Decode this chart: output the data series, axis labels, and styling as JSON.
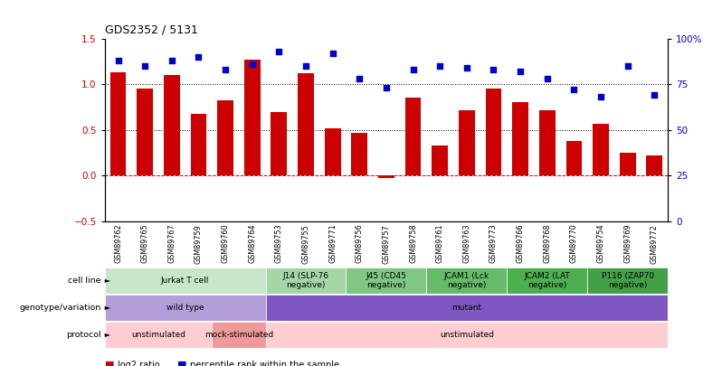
{
  "title": "GDS2352 / 5131",
  "samples": [
    "GSM89762",
    "GSM89765",
    "GSM89767",
    "GSM89759",
    "GSM89760",
    "GSM89764",
    "GSM89753",
    "GSM89755",
    "GSM89771",
    "GSM89756",
    "GSM89757",
    "GSM89758",
    "GSM89761",
    "GSM89763",
    "GSM89773",
    "GSM89766",
    "GSM89768",
    "GSM89770",
    "GSM89754",
    "GSM89769",
    "GSM89772"
  ],
  "log2_ratio_21": [
    1.13,
    0.95,
    1.1,
    0.68,
    0.82,
    1.27,
    0.7,
    1.12,
    0.52,
    0.47,
    -0.03,
    0.85,
    0.33,
    0.72,
    0.95,
    0.8,
    0.72,
    0.38,
    0.57,
    0.25,
    0.22
  ],
  "percentile_pct": [
    88,
    85,
    88,
    90,
    83,
    86,
    93,
    85,
    92,
    78,
    73,
    83,
    85,
    84,
    83,
    82,
    78,
    72,
    68,
    85,
    69
  ],
  "bar_color": "#cc0000",
  "dot_color": "#0000cc",
  "ylim_left": [
    -0.5,
    1.5
  ],
  "yticks_left": [
    -0.5,
    0.0,
    0.5,
    1.0,
    1.5
  ],
  "yticks_right": [
    0,
    25,
    50,
    75,
    100
  ],
  "yticklabels_right": [
    "0",
    "25",
    "50",
    "75",
    "100%"
  ],
  "cell_line_groups": [
    {
      "label": "Jurkat T cell",
      "start": 0,
      "end": 6,
      "color": "#c8e6c9"
    },
    {
      "label": "J14 (SLP-76\nnegative)",
      "start": 6,
      "end": 9,
      "color": "#a5d6a7"
    },
    {
      "label": "J45 (CD45\nnegative)",
      "start": 9,
      "end": 12,
      "color": "#81c784"
    },
    {
      "label": "JCAM1 (Lck\nnegative)",
      "start": 12,
      "end": 15,
      "color": "#66bb6a"
    },
    {
      "label": "JCAM2 (LAT\nnegative)",
      "start": 15,
      "end": 18,
      "color": "#4caf50"
    },
    {
      "label": "P116 (ZAP70\nnegative)",
      "start": 18,
      "end": 21,
      "color": "#43a047"
    }
  ],
  "genotype_groups": [
    {
      "label": "wild type",
      "start": 0,
      "end": 6,
      "color": "#b39ddb"
    },
    {
      "label": "mutant",
      "start": 6,
      "end": 21,
      "color": "#7e57c2"
    }
  ],
  "protocol_groups": [
    {
      "label": "unstimulated",
      "start": 0,
      "end": 4,
      "color": "#ffcdd2"
    },
    {
      "label": "mock-stimulated",
      "start": 4,
      "end": 6,
      "color": "#ef9a9a"
    },
    {
      "label": "unstimulated",
      "start": 6,
      "end": 21,
      "color": "#ffcdd2"
    }
  ]
}
